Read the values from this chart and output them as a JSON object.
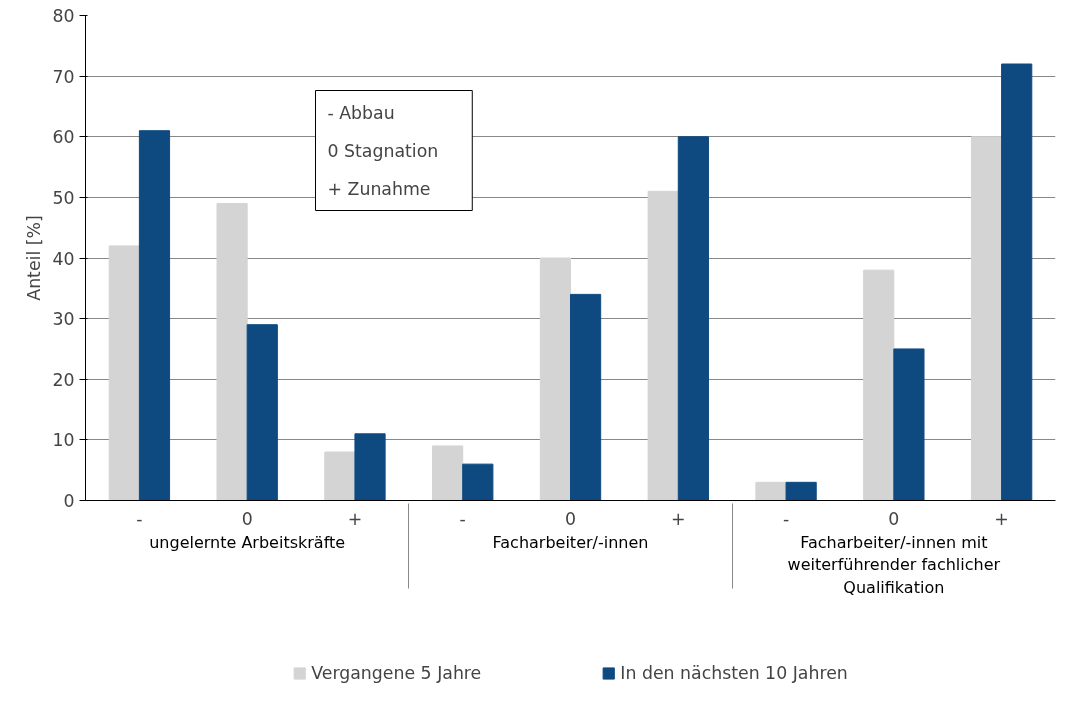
{
  "chart_data": {
    "type": "bar",
    "categories": [
      "-",
      "0",
      "+",
      "-",
      "0",
      "+",
      "-",
      "0",
      "+"
    ],
    "series": [
      {
        "name": "Vergangene 5 Jahre",
        "color": "#d4d4d4",
        "values": [
          42,
          49,
          8,
          9,
          40,
          51,
          3,
          38,
          60
        ]
      },
      {
        "name": "In den nächsten 10 Jahren",
        "color": "#0e4a80",
        "values": [
          61,
          29,
          11,
          6,
          34,
          60,
          3,
          25,
          72
        ]
      }
    ],
    "ylabel": "Anteil [%]",
    "ylim": [
      0,
      80
    ],
    "yticks": [
      0,
      10,
      20,
      30,
      40,
      50,
      60,
      70,
      80
    ],
    "grid": "y",
    "legend": "bottom",
    "annotations": [
      "ungelernte Arbeitskräfte",
      "Facharbeiter/-innen",
      "Facharbeiter/-innen mit weiterführender fachlicher Qualifikation",
      "- Abbau",
      "0 Stagnation",
      "+ Zunahme"
    ]
  }
}
